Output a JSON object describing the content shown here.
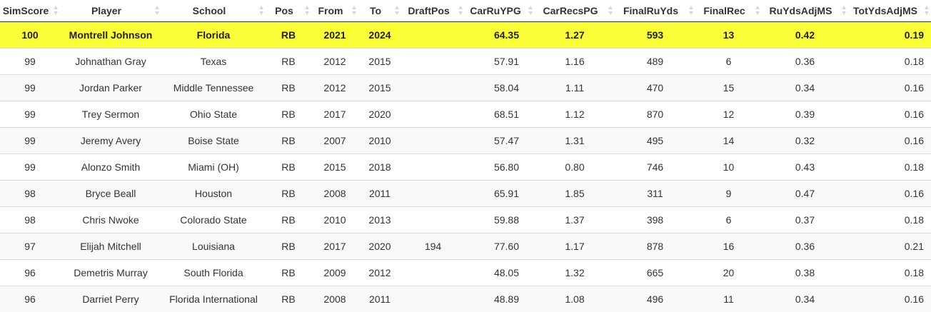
{
  "columns": [
    "SimScore",
    "Player",
    "School",
    "Pos",
    "From",
    "To",
    "DraftPos",
    "CarRuYPG",
    "CarRecsPG",
    "FinalRuYds",
    "FinalRec",
    "RuYdsAdjMS",
    "TotYdsAdjMS"
  ],
  "rows": [
    {
      "SimScore": "100",
      "Player": "Montrell Johnson",
      "School": "Florida",
      "Pos": "RB",
      "From": "2021",
      "To": "2024",
      "DraftPos": "",
      "CarRuYPG": "64.35",
      "CarRecsPG": "1.27",
      "FinalRuYds": "593",
      "FinalRec": "13",
      "RuYdsAdjMS": "0.42",
      "TotYdsAdjMS": "0.19"
    },
    {
      "SimScore": "99",
      "Player": "Johnathan Gray",
      "School": "Texas",
      "Pos": "RB",
      "From": "2012",
      "To": "2015",
      "DraftPos": "",
      "CarRuYPG": "57.91",
      "CarRecsPG": "1.16",
      "FinalRuYds": "489",
      "FinalRec": "6",
      "RuYdsAdjMS": "0.36",
      "TotYdsAdjMS": "0.18"
    },
    {
      "SimScore": "99",
      "Player": "Jordan Parker",
      "School": "Middle Tennessee",
      "Pos": "RB",
      "From": "2012",
      "To": "2015",
      "DraftPos": "",
      "CarRuYPG": "58.04",
      "CarRecsPG": "1.11",
      "FinalRuYds": "470",
      "FinalRec": "15",
      "RuYdsAdjMS": "0.34",
      "TotYdsAdjMS": "0.16"
    },
    {
      "SimScore": "99",
      "Player": "Trey Sermon",
      "School": "Ohio State",
      "Pos": "RB",
      "From": "2017",
      "To": "2020",
      "DraftPos": "",
      "CarRuYPG": "68.51",
      "CarRecsPG": "1.12",
      "FinalRuYds": "870",
      "FinalRec": "12",
      "RuYdsAdjMS": "0.39",
      "TotYdsAdjMS": "0.16"
    },
    {
      "SimScore": "99",
      "Player": "Jeremy Avery",
      "School": "Boise State",
      "Pos": "RB",
      "From": "2007",
      "To": "2010",
      "DraftPos": "",
      "CarRuYPG": "57.47",
      "CarRecsPG": "1.31",
      "FinalRuYds": "495",
      "FinalRec": "14",
      "RuYdsAdjMS": "0.32",
      "TotYdsAdjMS": "0.16"
    },
    {
      "SimScore": "99",
      "Player": "Alonzo Smith",
      "School": "Miami (OH)",
      "Pos": "RB",
      "From": "2015",
      "To": "2018",
      "DraftPos": "",
      "CarRuYPG": "56.80",
      "CarRecsPG": "0.80",
      "FinalRuYds": "746",
      "FinalRec": "10",
      "RuYdsAdjMS": "0.43",
      "TotYdsAdjMS": "0.18"
    },
    {
      "SimScore": "98",
      "Player": "Bryce Beall",
      "School": "Houston",
      "Pos": "RB",
      "From": "2008",
      "To": "2011",
      "DraftPos": "",
      "CarRuYPG": "65.91",
      "CarRecsPG": "1.85",
      "FinalRuYds": "311",
      "FinalRec": "9",
      "RuYdsAdjMS": "0.47",
      "TotYdsAdjMS": "0.16"
    },
    {
      "SimScore": "98",
      "Player": "Chris Nwoke",
      "School": "Colorado State",
      "Pos": "RB",
      "From": "2010",
      "To": "2013",
      "DraftPos": "",
      "CarRuYPG": "59.88",
      "CarRecsPG": "1.37",
      "FinalRuYds": "398",
      "FinalRec": "6",
      "RuYdsAdjMS": "0.37",
      "TotYdsAdjMS": "0.18"
    },
    {
      "SimScore": "97",
      "Player": "Elijah Mitchell",
      "School": "Louisiana",
      "Pos": "RB",
      "From": "2017",
      "To": "2020",
      "DraftPos": "194",
      "CarRuYPG": "77.60",
      "CarRecsPG": "1.17",
      "FinalRuYds": "878",
      "FinalRec": "16",
      "RuYdsAdjMS": "0.36",
      "TotYdsAdjMS": "0.21"
    },
    {
      "SimScore": "96",
      "Player": "Demetris Murray",
      "School": "South Florida",
      "Pos": "RB",
      "From": "2009",
      "To": "2012",
      "DraftPos": "",
      "CarRuYPG": "48.05",
      "CarRecsPG": "1.32",
      "FinalRuYds": "665",
      "FinalRec": "20",
      "RuYdsAdjMS": "0.38",
      "TotYdsAdjMS": "0.18"
    },
    {
      "SimScore": "96",
      "Player": "Darriet Perry",
      "School": "Florida International",
      "Pos": "RB",
      "From": "2008",
      "To": "2011",
      "DraftPos": "",
      "CarRuYPG": "48.89",
      "CarRecsPG": "1.08",
      "FinalRuYds": "496",
      "FinalRec": "11",
      "RuYdsAdjMS": "0.34",
      "TotYdsAdjMS": "0.16"
    }
  ],
  "highlight_color": "#faff39"
}
